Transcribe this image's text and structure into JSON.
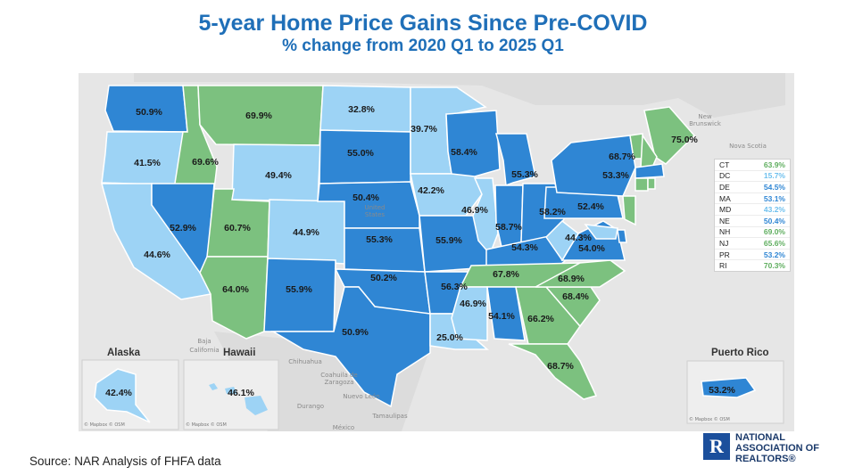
{
  "title": "5-year Home Price Gains Since Pre-COVID",
  "subtitle": "% change from 2020 Q1 to 2025 Q1",
  "colors": {
    "dark": "#2f86d4",
    "light": "#9dd3f5",
    "green": "#7cc17f",
    "legend_blue_dark": "#2f86d4",
    "legend_blue_light": "#6fc0ee",
    "legend_green": "#5fae5f"
  },
  "states": [
    {
      "code": "WA",
      "label": "50.9%",
      "tone": "dark"
    },
    {
      "code": "OR",
      "label": "41.5%",
      "tone": "light"
    },
    {
      "code": "CA",
      "label": "44.6%",
      "tone": "light"
    },
    {
      "code": "ID",
      "label": "69.6%",
      "tone": "green"
    },
    {
      "code": "NV",
      "label": "52.9%",
      "tone": "dark"
    },
    {
      "code": "MT",
      "label": "69.9%",
      "tone": "green"
    },
    {
      "code": "WY",
      "label": "49.4%",
      "tone": "light"
    },
    {
      "code": "UT",
      "label": "60.7%",
      "tone": "green"
    },
    {
      "code": "AZ",
      "label": "64.0%",
      "tone": "green"
    },
    {
      "code": "CO",
      "label": "44.9%",
      "tone": "light"
    },
    {
      "code": "NM",
      "label": "55.9%",
      "tone": "dark"
    },
    {
      "code": "ND",
      "label": "32.8%",
      "tone": "light"
    },
    {
      "code": "SD",
      "label": "55.0%",
      "tone": "dark"
    },
    {
      "code": "NE",
      "label": "50.4%",
      "tone": "dark"
    },
    {
      "code": "KS",
      "label": "55.3%",
      "tone": "dark"
    },
    {
      "code": "OK",
      "label": "50.2%",
      "tone": "dark"
    },
    {
      "code": "TX",
      "label": "50.9%",
      "tone": "dark"
    },
    {
      "code": "MN",
      "label": "39.7%",
      "tone": "light"
    },
    {
      "code": "IA",
      "label": "42.2%",
      "tone": "light"
    },
    {
      "code": "MO",
      "label": "55.9%",
      "tone": "dark"
    },
    {
      "code": "AR",
      "label": "56.3%",
      "tone": "dark"
    },
    {
      "code": "LA",
      "label": "25.0%",
      "tone": "light"
    },
    {
      "code": "WI",
      "label": "58.4%",
      "tone": "dark"
    },
    {
      "code": "IL",
      "label": "46.9%",
      "tone": "light"
    },
    {
      "code": "MI",
      "label": "55.3%",
      "tone": "dark"
    },
    {
      "code": "IN",
      "label": "58.7%",
      "tone": "dark"
    },
    {
      "code": "OH",
      "label": "58.2%",
      "tone": "dark"
    },
    {
      "code": "KY",
      "label": "54.3%",
      "tone": "dark"
    },
    {
      "code": "TN",
      "label": "67.8%",
      "tone": "green"
    },
    {
      "code": "MS",
      "label": "46.9%",
      "tone": "light"
    },
    {
      "code": "AL",
      "label": "54.1%",
      "tone": "dark"
    },
    {
      "code": "GA",
      "label": "66.2%",
      "tone": "green"
    },
    {
      "code": "FL",
      "label": "68.7%",
      "tone": "green"
    },
    {
      "code": "SC",
      "label": "68.4%",
      "tone": "green"
    },
    {
      "code": "NC",
      "label": "68.9%",
      "tone": "green"
    },
    {
      "code": "VA",
      "label": "54.0%",
      "tone": "dark"
    },
    {
      "code": "WV",
      "label": "44.3%",
      "tone": "light"
    },
    {
      "code": "PA",
      "label": "52.4%",
      "tone": "dark"
    },
    {
      "code": "NY",
      "label": "53.3%",
      "tone": "dark"
    },
    {
      "code": "VT",
      "label": "68.7%",
      "tone": "green"
    },
    {
      "code": "ME",
      "label": "75.0%",
      "tone": "green"
    },
    {
      "code": "AK",
      "label": "42.4%",
      "tone": "light"
    },
    {
      "code": "HI",
      "label": "46.1%",
      "tone": "light"
    },
    {
      "code": "PR",
      "label": "53.2%",
      "tone": "dark"
    }
  ],
  "small_states": [
    {
      "code": "NH",
      "tone": "green"
    },
    {
      "code": "MA",
      "tone": "dark"
    },
    {
      "code": "CT",
      "tone": "green"
    },
    {
      "code": "RI",
      "tone": "green"
    },
    {
      "code": "NJ",
      "tone": "green"
    },
    {
      "code": "DE",
      "tone": "dark"
    },
    {
      "code": "MD",
      "tone": "light"
    }
  ],
  "insets": {
    "alaska": "Alaska",
    "hawaii": "Hawaii",
    "puerto_rico": "Puerto Rico"
  },
  "legend": [
    {
      "code": "CT",
      "value": "63.9%",
      "tone": "green"
    },
    {
      "code": "DC",
      "value": "15.7%",
      "tone": "light"
    },
    {
      "code": "DE",
      "value": "54.5%",
      "tone": "dark"
    },
    {
      "code": "MA",
      "value": "53.1%",
      "tone": "dark"
    },
    {
      "code": "MD",
      "value": "43.2%",
      "tone": "light"
    },
    {
      "code": "NE",
      "value": "50.4%",
      "tone": "dark"
    },
    {
      "code": "NH",
      "value": "69.0%",
      "tone": "green"
    },
    {
      "code": "NJ",
      "value": "65.6%",
      "tone": "green"
    },
    {
      "code": "PR",
      "value": "53.2%",
      "tone": "dark"
    },
    {
      "code": "RI",
      "value": "70.3%",
      "tone": "green"
    }
  ],
  "geo_labels": [
    {
      "text": "Baja",
      "key": "baja"
    },
    {
      "text": "California",
      "key": "bajacal"
    },
    {
      "text": "Chihuahua",
      "key": "chihuahua"
    },
    {
      "text": "Coahuila de",
      "key": "coahuila"
    },
    {
      "text": "Zaragoza",
      "key": "zaragoza"
    },
    {
      "text": "Nuevo León",
      "key": "nuevoleon"
    },
    {
      "text": "Durango",
      "key": "durango"
    },
    {
      "text": "Tamaulipas",
      "key": "tamaulipas"
    },
    {
      "text": "México",
      "key": "mexico"
    },
    {
      "text": "United",
      "key": "united"
    },
    {
      "text": "States",
      "key": "states"
    },
    {
      "text": "New",
      "key": "newb"
    },
    {
      "text": "Brunswick",
      "key": "brunswick"
    },
    {
      "text": "Nova Scotia",
      "key": "novascotia"
    }
  ],
  "map_credit": "© Mapbox © OSM",
  "source": "Source: NAR Analysis of FHFA data",
  "logo": {
    "mark": "R",
    "lines": [
      "NATIONAL",
      "ASSOCIATION OF",
      "REALTORS®"
    ]
  }
}
